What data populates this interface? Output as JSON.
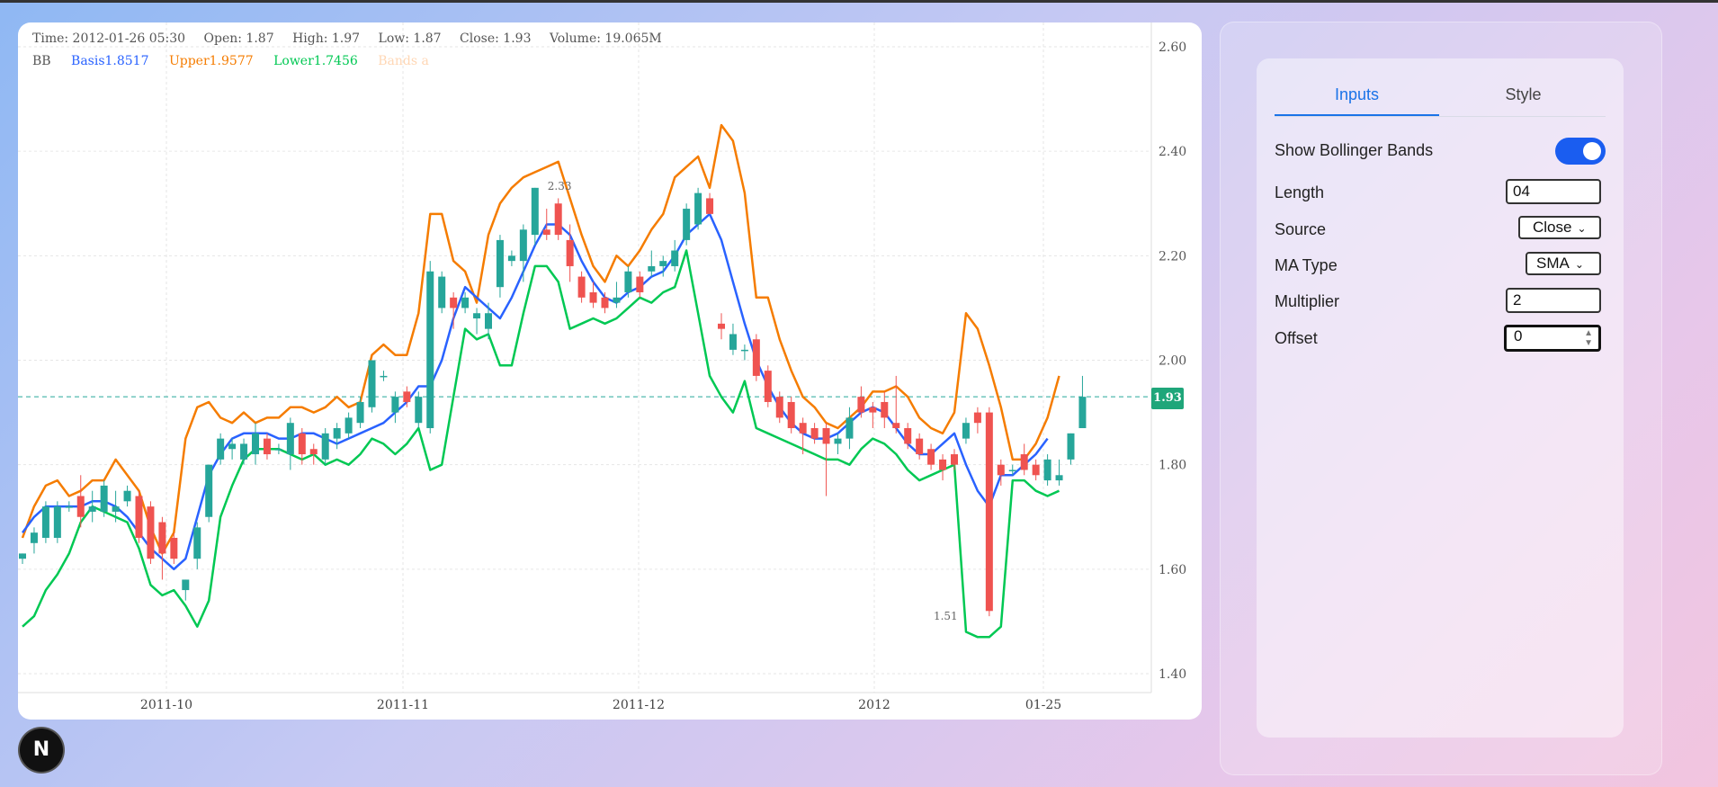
{
  "ohlc": {
    "time": "Time: 2012-01-26 05:30",
    "open": "Open: 1.87",
    "high": "High: 1.97",
    "low": "Low: 1.87",
    "close": "Close: 1.93",
    "volume": "Volume: 19.065M"
  },
  "bb_legend": {
    "name": "BB",
    "basis": "Basis1.8517",
    "upper": "Upper1.9577",
    "lower": "Lower1.7456",
    "bands": "Bands a"
  },
  "colors": {
    "up": "#26a69a",
    "down": "#ef5350",
    "basis": "#2962ff",
    "upper": "#f57c00",
    "lower": "#00c853",
    "accent": "#1a73e8"
  },
  "last_price": "1.93",
  "chart_data": {
    "type": "candlestick",
    "title": "",
    "y_ticks": [
      "2.60",
      "2.40",
      "2.20",
      "2.00",
      "1.80",
      "1.60",
      "1.40"
    ],
    "ylim": [
      1.36,
      2.64
    ],
    "x_ticks": [
      "2011-10",
      "2011-11",
      "2011-12",
      "2012",
      "01-25"
    ],
    "annotations": [
      "2.33",
      "1.51"
    ],
    "last_price_line": 1.93,
    "basis": [
      1.67,
      1.7,
      1.72,
      1.72,
      1.72,
      1.72,
      1.73,
      1.73,
      1.72,
      1.7,
      1.67,
      1.64,
      1.62,
      1.6,
      1.62,
      1.7,
      1.78,
      1.82,
      1.85,
      1.86,
      1.86,
      1.86,
      1.85,
      1.85,
      1.86,
      1.86,
      1.85,
      1.84,
      1.85,
      1.86,
      1.87,
      1.88,
      1.9,
      1.92,
      1.95,
      1.95,
      2.0,
      2.08,
      2.14,
      2.12,
      2.1,
      2.08,
      2.12,
      2.17,
      2.22,
      2.26,
      2.26,
      2.24,
      2.19,
      2.15,
      2.12,
      2.11,
      2.13,
      2.14,
      2.16,
      2.17,
      2.2,
      2.24,
      2.26,
      2.28,
      2.23,
      2.15,
      2.07,
      2.0,
      1.95,
      1.91,
      1.88,
      1.86,
      1.85,
      1.85,
      1.86,
      1.88,
      1.9,
      1.91,
      1.9,
      1.87,
      1.84,
      1.82,
      1.82,
      1.84,
      1.86,
      1.8,
      1.75,
      1.72,
      1.78,
      1.78,
      1.8,
      1.82,
      1.85
    ],
    "upper": [
      1.66,
      1.72,
      1.76,
      1.77,
      1.74,
      1.75,
      1.77,
      1.77,
      1.81,
      1.78,
      1.75,
      1.68,
      1.63,
      1.67,
      1.85,
      1.91,
      1.92,
      1.89,
      1.88,
      1.9,
      1.88,
      1.89,
      1.89,
      1.91,
      1.91,
      1.9,
      1.91,
      1.93,
      1.91,
      1.92,
      2.01,
      2.03,
      2.01,
      2.01,
      2.09,
      2.28,
      2.28,
      2.19,
      2.17,
      2.11,
      2.24,
      2.3,
      2.33,
      2.35,
      2.36,
      2.37,
      2.38,
      2.31,
      2.24,
      2.18,
      2.15,
      2.2,
      2.18,
      2.21,
      2.25,
      2.28,
      2.35,
      2.37,
      2.39,
      2.33,
      2.45,
      2.42,
      2.32,
      2.12,
      2.12,
      2.04,
      1.98,
      1.93,
      1.91,
      1.88,
      1.87,
      1.89,
      1.91,
      1.94,
      1.94,
      1.95,
      1.93,
      1.89,
      1.87,
      1.86,
      1.9,
      2.09,
      2.06,
      1.99,
      1.91,
      1.81,
      1.81,
      1.84,
      1.89,
      1.97
    ],
    "lower": [
      1.49,
      1.51,
      1.56,
      1.59,
      1.63,
      1.69,
      1.72,
      1.71,
      1.7,
      1.69,
      1.64,
      1.57,
      1.55,
      1.56,
      1.53,
      1.49,
      1.54,
      1.7,
      1.76,
      1.81,
      1.83,
      1.83,
      1.83,
      1.82,
      1.81,
      1.82,
      1.8,
      1.81,
      1.8,
      1.82,
      1.85,
      1.84,
      1.82,
      1.84,
      1.87,
      1.79,
      1.8,
      1.93,
      2.06,
      2.04,
      2.05,
      1.99,
      1.99,
      2.09,
      2.18,
      2.18,
      2.15,
      2.06,
      2.07,
      2.08,
      2.07,
      2.08,
      2.1,
      2.12,
      2.11,
      2.13,
      2.14,
      2.21,
      2.09,
      1.97,
      1.93,
      1.9,
      1.96,
      1.87,
      1.86,
      1.85,
      1.84,
      1.83,
      1.82,
      1.81,
      1.81,
      1.8,
      1.83,
      1.85,
      1.84,
      1.82,
      1.79,
      1.77,
      1.78,
      1.79,
      1.8,
      1.48,
      1.47,
      1.47,
      1.49,
      1.77,
      1.77,
      1.75,
      1.74,
      1.75
    ],
    "candles": [
      {
        "o": 1.62,
        "h": 1.63,
        "l": 1.61,
        "c": 1.63
      },
      {
        "o": 1.65,
        "h": 1.68,
        "l": 1.63,
        "c": 1.67
      },
      {
        "o": 1.66,
        "h": 1.73,
        "l": 1.65,
        "c": 1.72
      },
      {
        "o": 1.66,
        "h": 1.73,
        "l": 1.65,
        "c": 1.72
      },
      {
        "o": 1.72,
        "h": 1.73,
        "l": 1.71,
        "c": 1.72
      },
      {
        "o": 1.74,
        "h": 1.78,
        "l": 1.68,
        "c": 1.7
      },
      {
        "o": 1.71,
        "h": 1.75,
        "l": 1.69,
        "c": 1.72
      },
      {
        "o": 1.71,
        "h": 1.77,
        "l": 1.7,
        "c": 1.76
      },
      {
        "o": 1.71,
        "h": 1.75,
        "l": 1.69,
        "c": 1.72
      },
      {
        "o": 1.73,
        "h": 1.76,
        "l": 1.72,
        "c": 1.75
      },
      {
        "o": 1.74,
        "h": 1.75,
        "l": 1.65,
        "c": 1.66
      },
      {
        "o": 1.72,
        "h": 1.73,
        "l": 1.61,
        "c": 1.62
      },
      {
        "o": 1.69,
        "h": 1.7,
        "l": 1.58,
        "c": 1.63
      },
      {
        "o": 1.66,
        "h": 1.67,
        "l": 1.61,
        "c": 1.62
      },
      {
        "o": 1.56,
        "h": 1.58,
        "l": 1.54,
        "c": 1.58
      },
      {
        "o": 1.62,
        "h": 1.69,
        "l": 1.6,
        "c": 1.68
      },
      {
        "o": 1.7,
        "h": 1.8,
        "l": 1.69,
        "c": 1.8
      },
      {
        "o": 1.81,
        "h": 1.86,
        "l": 1.8,
        "c": 1.85
      },
      {
        "o": 1.83,
        "h": 1.85,
        "l": 1.81,
        "c": 1.84
      },
      {
        "o": 1.81,
        "h": 1.85,
        "l": 1.8,
        "c": 1.84
      },
      {
        "o": 1.82,
        "h": 1.88,
        "l": 1.8,
        "c": 1.86
      },
      {
        "o": 1.85,
        "h": 1.86,
        "l": 1.81,
        "c": 1.82
      },
      {
        "o": 1.83,
        "h": 1.84,
        "l": 1.82,
        "c": 1.83
      },
      {
        "o": 1.82,
        "h": 1.89,
        "l": 1.79,
        "c": 1.88
      },
      {
        "o": 1.86,
        "h": 1.87,
        "l": 1.8,
        "c": 1.82
      },
      {
        "o": 1.83,
        "h": 1.84,
        "l": 1.8,
        "c": 1.82
      },
      {
        "o": 1.81,
        "h": 1.87,
        "l": 1.8,
        "c": 1.86
      },
      {
        "o": 1.85,
        "h": 1.88,
        "l": 1.83,
        "c": 1.87
      },
      {
        "o": 1.86,
        "h": 1.9,
        "l": 1.85,
        "c": 1.89
      },
      {
        "o": 1.88,
        "h": 1.93,
        "l": 1.87,
        "c": 1.92
      },
      {
        "o": 1.91,
        "h": 2.0,
        "l": 1.9,
        "c": 2.0
      },
      {
        "o": 1.97,
        "h": 1.98,
        "l": 1.96,
        "c": 1.97
      },
      {
        "o": 1.9,
        "h": 1.94,
        "l": 1.88,
        "c": 1.93
      },
      {
        "o": 1.94,
        "h": 1.95,
        "l": 1.91,
        "c": 1.92
      },
      {
        "o": 1.88,
        "h": 1.94,
        "l": 1.87,
        "c": 1.93
      },
      {
        "o": 1.87,
        "h": 2.19,
        "l": 1.86,
        "c": 2.17
      },
      {
        "o": 2.1,
        "h": 2.17,
        "l": 2.09,
        "c": 2.16
      },
      {
        "o": 2.12,
        "h": 2.13,
        "l": 2.06,
        "c": 2.1
      },
      {
        "o": 2.1,
        "h": 2.13,
        "l": 2.09,
        "c": 2.12
      },
      {
        "o": 2.08,
        "h": 2.1,
        "l": 2.05,
        "c": 2.09
      },
      {
        "o": 2.06,
        "h": 2.11,
        "l": 2.04,
        "c": 2.09
      },
      {
        "o": 2.14,
        "h": 2.24,
        "l": 2.12,
        "c": 2.23
      },
      {
        "o": 2.19,
        "h": 2.21,
        "l": 2.18,
        "c": 2.2
      },
      {
        "o": 2.19,
        "h": 2.26,
        "l": 2.15,
        "c": 2.25
      },
      {
        "o": 2.24,
        "h": 2.33,
        "l": 2.22,
        "c": 2.33
      },
      {
        "o": 2.25,
        "h": 2.29,
        "l": 2.23,
        "c": 2.24
      },
      {
        "o": 2.3,
        "h": 2.31,
        "l": 2.23,
        "c": 2.24
      },
      {
        "o": 2.23,
        "h": 2.26,
        "l": 2.15,
        "c": 2.18
      },
      {
        "o": 2.16,
        "h": 2.17,
        "l": 2.11,
        "c": 2.12
      },
      {
        "o": 2.13,
        "h": 2.15,
        "l": 2.1,
        "c": 2.11
      },
      {
        "o": 2.12,
        "h": 2.13,
        "l": 2.09,
        "c": 2.1
      },
      {
        "o": 2.11,
        "h": 2.15,
        "l": 2.1,
        "c": 2.12
      },
      {
        "o": 2.13,
        "h": 2.18,
        "l": 2.12,
        "c": 2.17
      },
      {
        "o": 2.16,
        "h": 2.17,
        "l": 2.12,
        "c": 2.13
      },
      {
        "o": 2.17,
        "h": 2.21,
        "l": 2.16,
        "c": 2.18
      },
      {
        "o": 2.18,
        "h": 2.2,
        "l": 2.16,
        "c": 2.19
      },
      {
        "o": 2.18,
        "h": 2.23,
        "l": 2.17,
        "c": 2.21
      },
      {
        "o": 2.23,
        "h": 2.3,
        "l": 2.22,
        "c": 2.29
      },
      {
        "o": 2.26,
        "h": 2.33,
        "l": 2.25,
        "c": 2.32
      },
      {
        "o": 2.31,
        "h": 2.32,
        "l": 2.28,
        "c": 2.28
      },
      {
        "o": 2.07,
        "h": 2.09,
        "l": 2.04,
        "c": 2.06
      },
      {
        "o": 2.02,
        "h": 2.07,
        "l": 2.01,
        "c": 2.05
      },
      {
        "o": 2.02,
        "h": 2.03,
        "l": 2.0,
        "c": 2.02
      },
      {
        "o": 2.04,
        "h": 2.05,
        "l": 1.96,
        "c": 1.97
      },
      {
        "o": 1.98,
        "h": 1.99,
        "l": 1.91,
        "c": 1.92
      },
      {
        "o": 1.93,
        "h": 1.94,
        "l": 1.88,
        "c": 1.89
      },
      {
        "o": 1.92,
        "h": 1.93,
        "l": 1.86,
        "c": 1.87
      },
      {
        "o": 1.88,
        "h": 1.89,
        "l": 1.82,
        "c": 1.86
      },
      {
        "o": 1.87,
        "h": 1.88,
        "l": 1.84,
        "c": 1.85
      },
      {
        "o": 1.87,
        "h": 1.88,
        "l": 1.74,
        "c": 1.84
      },
      {
        "o": 1.84,
        "h": 1.86,
        "l": 1.82,
        "c": 1.85
      },
      {
        "o": 1.85,
        "h": 1.91,
        "l": 1.83,
        "c": 1.89
      },
      {
        "o": 1.93,
        "h": 1.95,
        "l": 1.89,
        "c": 1.9
      },
      {
        "o": 1.91,
        "h": 1.92,
        "l": 1.87,
        "c": 1.9
      },
      {
        "o": 1.92,
        "h": 1.94,
        "l": 1.87,
        "c": 1.89
      },
      {
        "o": 1.88,
        "h": 1.97,
        "l": 1.86,
        "c": 1.87
      },
      {
        "o": 1.87,
        "h": 1.88,
        "l": 1.83,
        "c": 1.84
      },
      {
        "o": 1.85,
        "h": 1.86,
        "l": 1.81,
        "c": 1.82
      },
      {
        "o": 1.83,
        "h": 1.84,
        "l": 1.79,
        "c": 1.8
      },
      {
        "o": 1.81,
        "h": 1.82,
        "l": 1.77,
        "c": 1.79
      },
      {
        "o": 1.82,
        "h": 1.83,
        "l": 1.79,
        "c": 1.8
      },
      {
        "o": 1.85,
        "h": 1.89,
        "l": 1.84,
        "c": 1.88
      },
      {
        "o": 1.9,
        "h": 1.91,
        "l": 1.86,
        "c": 1.88
      },
      {
        "o": 1.9,
        "h": 1.91,
        "l": 1.51,
        "c": 1.52
      },
      {
        "o": 1.8,
        "h": 1.81,
        "l": 1.76,
        "c": 1.78
      },
      {
        "o": 1.79,
        "h": 1.8,
        "l": 1.78,
        "c": 1.79
      },
      {
        "o": 1.82,
        "h": 1.84,
        "l": 1.78,
        "c": 1.79
      },
      {
        "o": 1.8,
        "h": 1.81,
        "l": 1.77,
        "c": 1.78
      },
      {
        "o": 1.77,
        "h": 1.82,
        "l": 1.76,
        "c": 1.81
      },
      {
        "o": 1.77,
        "h": 1.81,
        "l": 1.76,
        "c": 1.78
      },
      {
        "o": 1.81,
        "h": 1.86,
        "l": 1.8,
        "c": 1.86
      },
      {
        "o": 1.87,
        "h": 1.97,
        "l": 1.87,
        "c": 1.93
      }
    ]
  },
  "settings": {
    "tabs": [
      {
        "label": "Inputs",
        "active": true
      },
      {
        "label": "Style",
        "active": false
      }
    ],
    "show_bb_label": "Show Bollinger Bands",
    "show_bb_on": true,
    "length_label": "Length",
    "length_value": "04",
    "source_label": "Source",
    "source_value": "Close",
    "ma_type_label": "MA Type",
    "ma_type_value": "SMA",
    "multiplier_label": "Multiplier",
    "multiplier_value": "2",
    "offset_label": "Offset",
    "offset_value": "0"
  },
  "fab": {
    "label": "N"
  }
}
